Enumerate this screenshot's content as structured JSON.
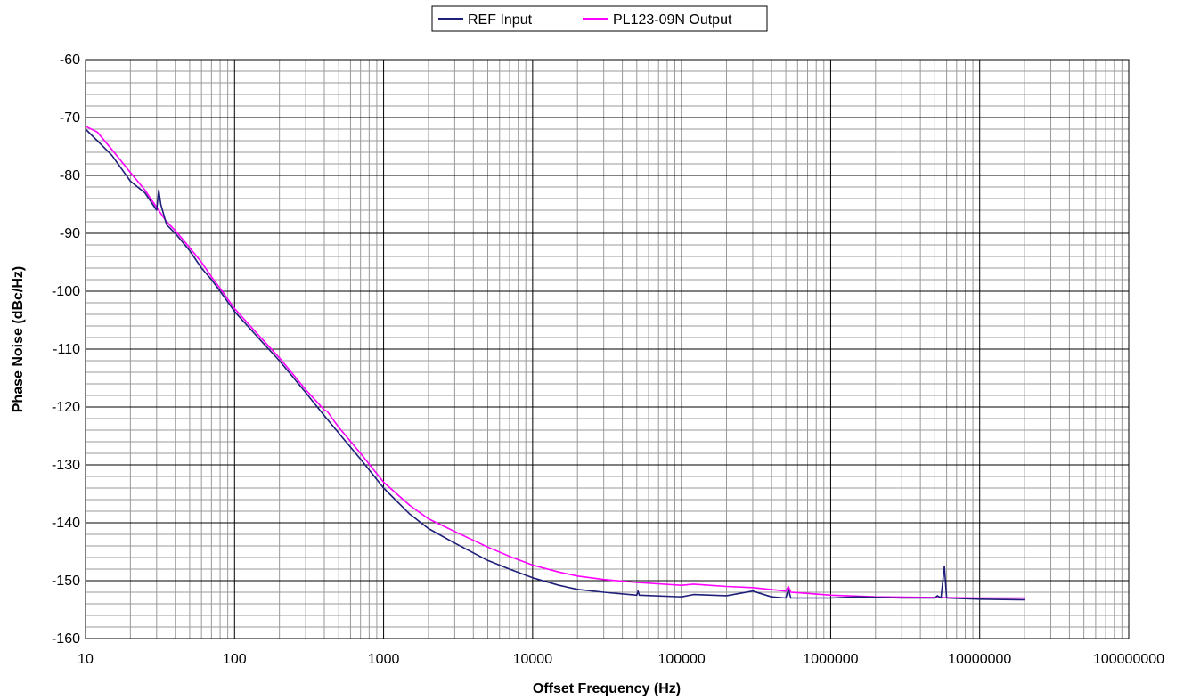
{
  "chart_data": {
    "type": "line",
    "title": "",
    "xlabel": "Offset Frequency (Hz)",
    "ylabel": "Phase Noise (dBc/Hz)",
    "x_scale": "log",
    "xlim": [
      10,
      100000000
    ],
    "ylim": [
      -160,
      -60
    ],
    "x_ticks": [
      "10",
      "100",
      "1000",
      "10000",
      "100000",
      "1000000",
      "10000000",
      "100000000"
    ],
    "y_ticks": [
      "-60",
      "-70",
      "-80",
      "-90",
      "-100",
      "-110",
      "-120",
      "-130",
      "-140",
      "-150",
      "-160"
    ],
    "grid": true,
    "legend_position": "top-center",
    "series": [
      {
        "name": "REF Input",
        "color": "#1f1f7a",
        "points": [
          [
            10,
            -72
          ],
          [
            12,
            -74
          ],
          [
            15,
            -76.5
          ],
          [
            20,
            -81
          ],
          [
            25,
            -83
          ],
          [
            30,
            -86
          ],
          [
            31,
            -82.5
          ],
          [
            32,
            -85
          ],
          [
            35,
            -88.5
          ],
          [
            40,
            -90
          ],
          [
            50,
            -93
          ],
          [
            60,
            -96
          ],
          [
            70,
            -98
          ],
          [
            80,
            -100
          ],
          [
            100,
            -103.5
          ],
          [
            150,
            -108.5
          ],
          [
            200,
            -112
          ],
          [
            300,
            -117.5
          ],
          [
            400,
            -121.5
          ],
          [
            500,
            -124.5
          ],
          [
            700,
            -129
          ],
          [
            1000,
            -134
          ],
          [
            1500,
            -138.5
          ],
          [
            2000,
            -141
          ],
          [
            3000,
            -143.5
          ],
          [
            5000,
            -146.5
          ],
          [
            7000,
            -148
          ],
          [
            10000,
            -149.5
          ],
          [
            15000,
            -150.8
          ],
          [
            20000,
            -151.5
          ],
          [
            30000,
            -152
          ],
          [
            50000,
            -152.5
          ],
          [
            51000,
            -151.8
          ],
          [
            52000,
            -152.5
          ],
          [
            100000,
            -152.8
          ],
          [
            120000,
            -152.4
          ],
          [
            200000,
            -152.6
          ],
          [
            300000,
            -151.8
          ],
          [
            400000,
            -152.8
          ],
          [
            500000,
            -153
          ],
          [
            520000,
            -151.5
          ],
          [
            540000,
            -153
          ],
          [
            1000000,
            -153
          ],
          [
            1500000,
            -152.8
          ],
          [
            3000000,
            -153
          ],
          [
            5000000,
            -153
          ],
          [
            5200000,
            -152.6
          ],
          [
            5500000,
            -153
          ],
          [
            5800000,
            -147.5
          ],
          [
            6000000,
            -153
          ],
          [
            10000000,
            -153.2
          ],
          [
            20000000,
            -153.3
          ]
        ]
      },
      {
        "name": "PL123-09N Output",
        "color": "#ff00ff",
        "points": [
          [
            10,
            -71.5
          ],
          [
            12,
            -72.5
          ],
          [
            15,
            -75.5
          ],
          [
            20,
            -79.5
          ],
          [
            25,
            -82.5
          ],
          [
            30,
            -85.5
          ],
          [
            35,
            -88
          ],
          [
            40,
            -89.5
          ],
          [
            50,
            -92.5
          ],
          [
            60,
            -95
          ],
          [
            70,
            -97.5
          ],
          [
            80,
            -99.5
          ],
          [
            100,
            -103
          ],
          [
            150,
            -108
          ],
          [
            200,
            -111.5
          ],
          [
            300,
            -117
          ],
          [
            400,
            -120.5
          ],
          [
            420,
            -120.8
          ],
          [
            500,
            -123.5
          ],
          [
            700,
            -128
          ],
          [
            1000,
            -133
          ],
          [
            1500,
            -137
          ],
          [
            2000,
            -139.3
          ],
          [
            3000,
            -141.5
          ],
          [
            5000,
            -144.2
          ],
          [
            7000,
            -145.8
          ],
          [
            10000,
            -147.3
          ],
          [
            15000,
            -148.5
          ],
          [
            20000,
            -149.2
          ],
          [
            30000,
            -149.8
          ],
          [
            50000,
            -150.3
          ],
          [
            100000,
            -150.8
          ],
          [
            120000,
            -150.6
          ],
          [
            200000,
            -151
          ],
          [
            300000,
            -151.2
          ],
          [
            500000,
            -151.8
          ],
          [
            520000,
            -151
          ],
          [
            540000,
            -152
          ],
          [
            700000,
            -152.2
          ],
          [
            1000000,
            -152.5
          ],
          [
            2000000,
            -152.8
          ],
          [
            5000000,
            -152.9
          ],
          [
            10000000,
            -153
          ],
          [
            20000000,
            -153
          ]
        ]
      }
    ]
  }
}
